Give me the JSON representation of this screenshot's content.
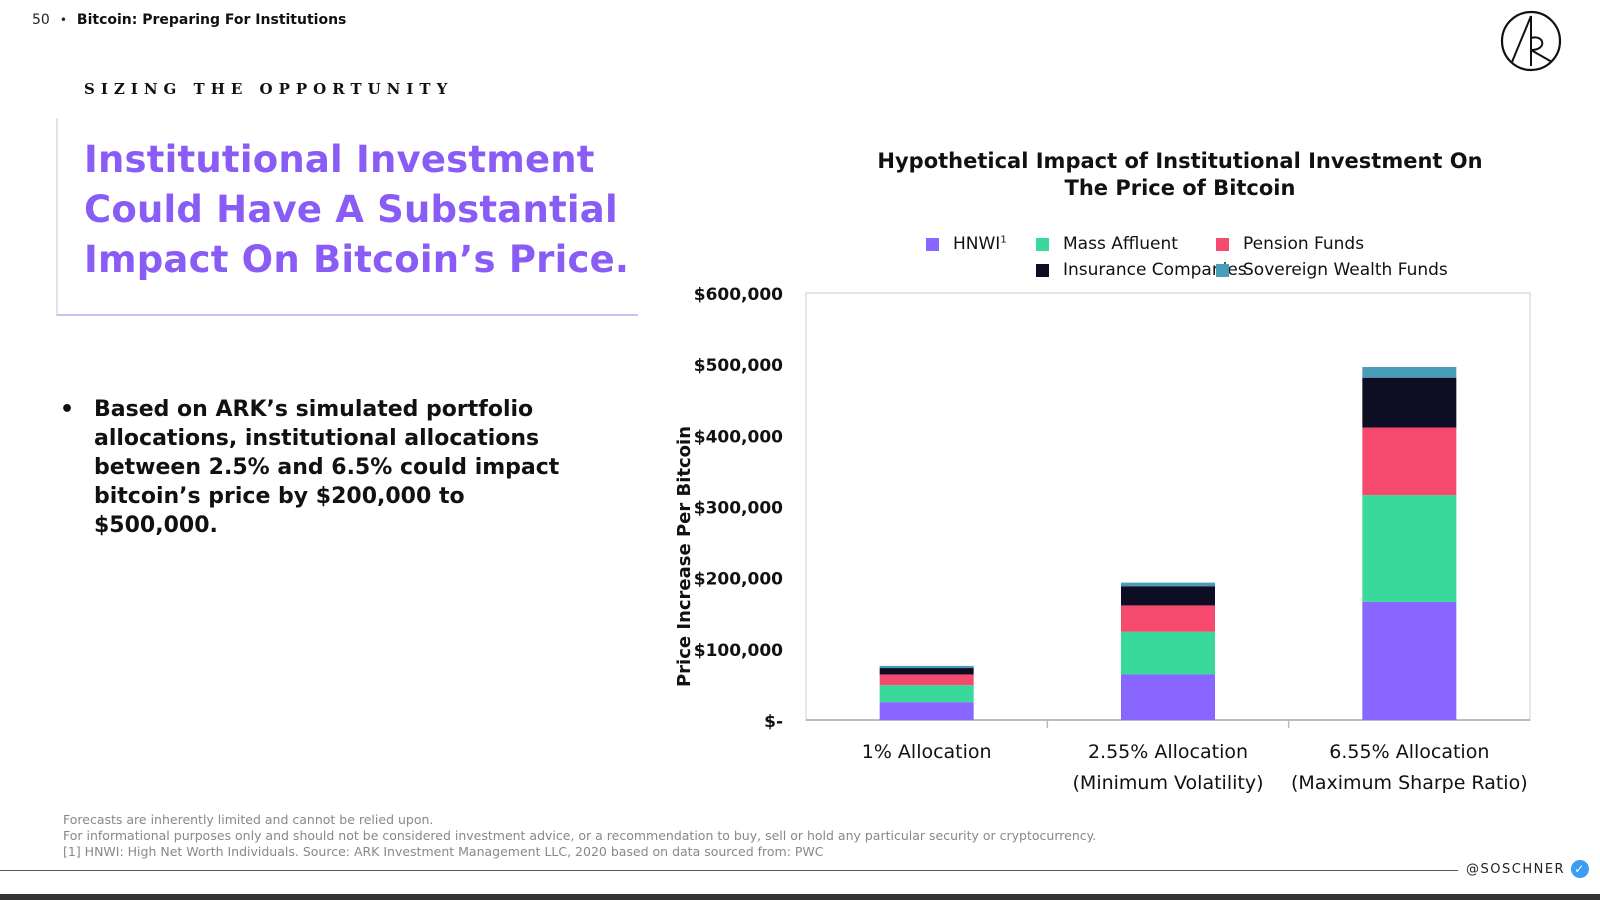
{
  "header": {
    "page_number": "50",
    "title": "Bitcoin: Preparing For Institutions"
  },
  "section_label": "SIZING THE OPPORTUNITY",
  "headline": "Institutional Investment Could Have A Substantial Impact On Bitcoin’s Price.",
  "bullet": "Based on ARK’s simulated portfolio allocations, institutional allocations between 2.5% and 6.5% could impact bitcoin’s price by $200,000 to $500,000.",
  "chart_data": {
    "type": "bar",
    "stacked": true,
    "title": "Hypothetical Impact of Institutional Investment On The Price of Bitcoin",
    "ylabel": "Price Increase Per Bitcoin",
    "xlabel": "",
    "ylim": [
      0,
      600000
    ],
    "yticks": [
      0,
      100000,
      200000,
      300000,
      400000,
      500000,
      600000
    ],
    "ytick_labels": [
      "$-",
      "$100,000",
      "$200,000",
      "$300,000",
      "$400,000",
      "$500,000",
      "$600,000"
    ],
    "categories": [
      [
        "1% Allocation"
      ],
      [
        "2.55% Allocation",
        "(Minimum Volatility)"
      ],
      [
        "6.55% Allocation",
        "(Maximum Sharpe Ratio)"
      ]
    ],
    "legend_position": "top",
    "series": [
      {
        "name": "HNWI",
        "name_superscript": "1",
        "color": "#8866ff",
        "values": [
          25000,
          64000,
          166000
        ]
      },
      {
        "name": "Mass Affluent",
        "color": "#38d99a",
        "values": [
          24000,
          60000,
          150000
        ]
      },
      {
        "name": "Pension Funds",
        "color": "#f54a6e",
        "values": [
          15000,
          37000,
          95000
        ]
      },
      {
        "name": "Insurance Companies",
        "color": "#0d0d24",
        "values": [
          9000,
          27000,
          70000
        ]
      },
      {
        "name": "Sovereign Wealth Funds",
        "color": "#4a9db8",
        "values": [
          3000,
          5000,
          15000
        ]
      }
    ]
  },
  "footnotes": [
    "Forecasts are inherently limited and cannot be relied upon.",
    "For informational purposes only and should not be considered investment advice, or a recommendation to buy, sell or hold any particular security or cryptocurrency.",
    "[1] HNWI: High Net Worth Individuals. Source: ARK Investment Management LLC, 2020 based on data sourced from: PWC"
  ],
  "handle": "@SOSCHNER",
  "icons": {
    "logo": "ark-logo-icon",
    "verified": "verified-badge-icon"
  }
}
